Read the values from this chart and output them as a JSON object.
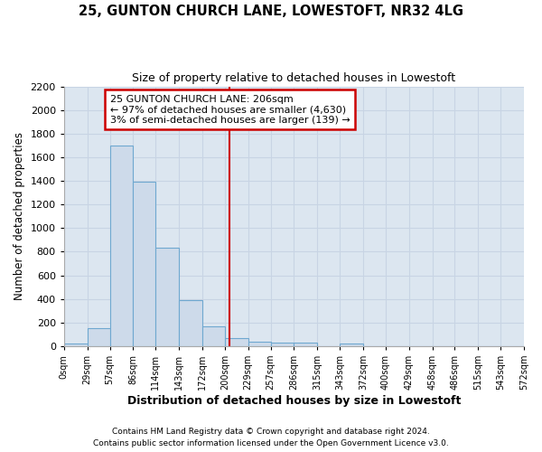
{
  "title1": "25, GUNTON CHURCH LANE, LOWESTOFT, NR32 4LG",
  "title2": "Size of property relative to detached houses in Lowestoft",
  "xlabel": "Distribution of detached houses by size in Lowestoft",
  "ylabel": "Number of detached properties",
  "footnote1": "Contains HM Land Registry data © Crown copyright and database right 2024.",
  "footnote2": "Contains public sector information licensed under the Open Government Licence v3.0.",
  "bar_values": [
    20,
    155,
    1700,
    1390,
    835,
    390,
    165,
    65,
    40,
    30,
    30,
    0,
    20,
    0,
    0,
    0,
    0,
    0,
    0,
    0
  ],
  "bin_edges": [
    0,
    29,
    57,
    86,
    114,
    143,
    172,
    200,
    229,
    257,
    286,
    315,
    343,
    372,
    400,
    429,
    458,
    486,
    515,
    543,
    572
  ],
  "tick_labels": [
    "0sqm",
    "29sqm",
    "57sqm",
    "86sqm",
    "114sqm",
    "143sqm",
    "172sqm",
    "200sqm",
    "229sqm",
    "257sqm",
    "286sqm",
    "315sqm",
    "343sqm",
    "372sqm",
    "400sqm",
    "429sqm",
    "458sqm",
    "486sqm",
    "515sqm",
    "543sqm",
    "572sqm"
  ],
  "bar_facecolor": "#cddaea",
  "bar_edgecolor": "#6fa8d0",
  "grid_color": "#c8d4e4",
  "vline_x": 206,
  "vline_color": "#cc0000",
  "annotation_text": "25 GUNTON CHURCH LANE: 206sqm\n← 97% of detached houses are smaller (4,630)\n3% of semi-detached houses are larger (139) →",
  "annotation_box_color": "#cc0000",
  "ylim": [
    0,
    2200
  ],
  "yticks": [
    0,
    200,
    400,
    600,
    800,
    1000,
    1200,
    1400,
    1600,
    1800,
    2000,
    2200
  ],
  "fig_bg_color": "#ffffff",
  "plot_bg_color": "#dce6f0"
}
